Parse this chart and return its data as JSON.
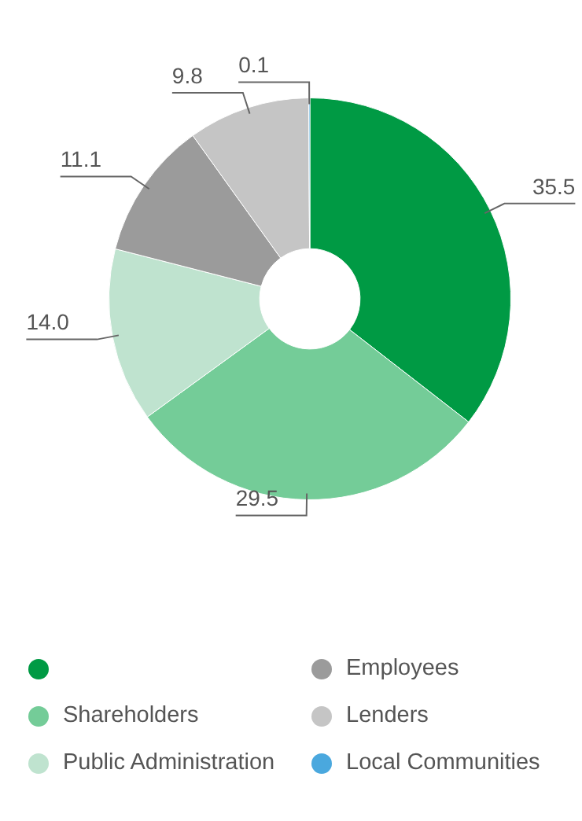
{
  "chart_data": {
    "type": "donut",
    "categories": [
      null,
      "Shareholders",
      "Public Administration",
      "Employees",
      "Lenders",
      "Local Communities"
    ],
    "values": [
      35.5,
      29.5,
      14.0,
      11.1,
      9.8,
      0.1
    ],
    "colors": [
      "#009a44",
      "#74cc98",
      "#bfe3cf",
      "#9b9b9b",
      "#c5c5c5",
      "#4aa8de"
    ],
    "value_labels": [
      "35.5",
      "29.5",
      "14.0",
      "11.1",
      "9.8",
      "0.1"
    ],
    "legend": "bottom"
  }
}
